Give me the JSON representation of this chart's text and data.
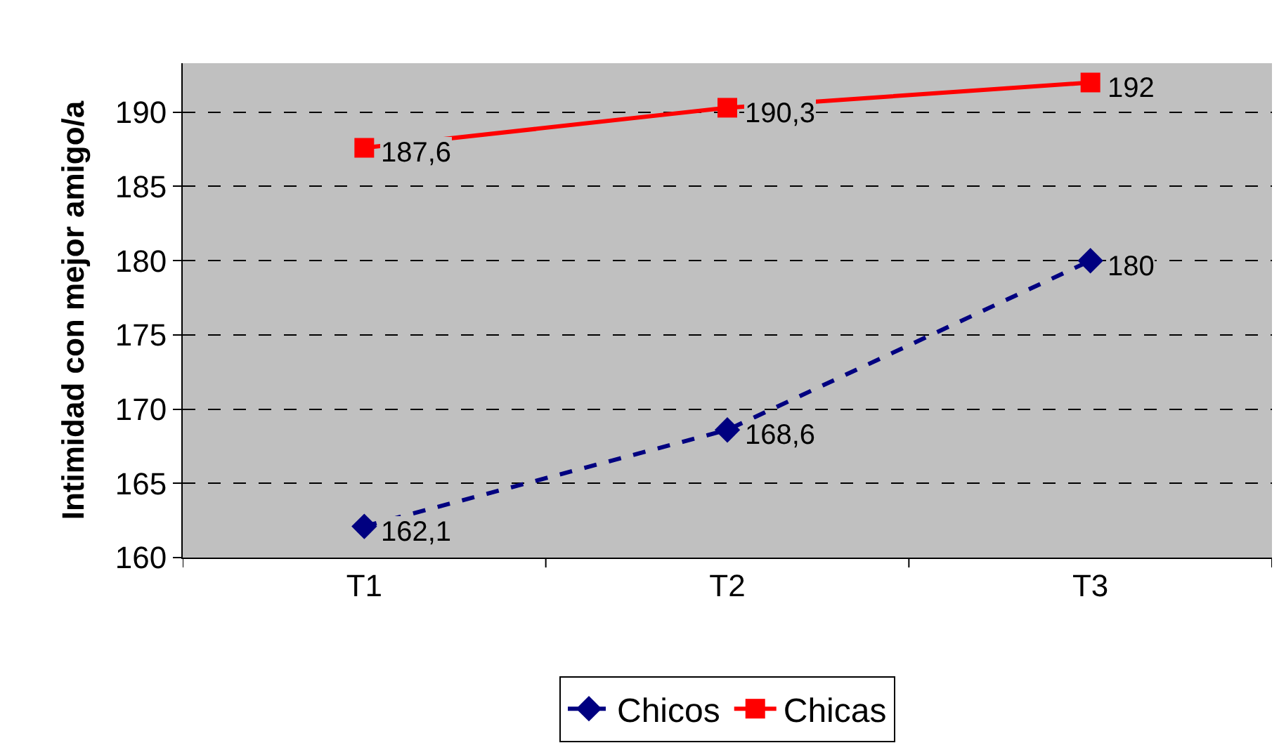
{
  "chart_data": {
    "type": "line",
    "ylabel": "Intimidad con mejor amigo/a",
    "categories": [
      "T1",
      "T2",
      "T3"
    ],
    "series": [
      {
        "name": "Chicos",
        "color": "#000080",
        "values": [
          162.1,
          168.6,
          180
        ],
        "value_labels": [
          "162,1",
          "168,6",
          "180"
        ],
        "marker": "diamond",
        "line_style": "dashed"
      },
      {
        "name": "Chicas",
        "color": "#ff0000",
        "values": [
          187.6,
          190.3,
          192
        ],
        "value_labels": [
          "187,6",
          "190,3",
          "192"
        ],
        "marker": "square",
        "line_style": "solid"
      }
    ],
    "ylim": [
      160,
      193.3
    ],
    "yticks": [
      160,
      165,
      170,
      175,
      180,
      185,
      190
    ],
    "grid": "y",
    "legend": "bottom"
  }
}
